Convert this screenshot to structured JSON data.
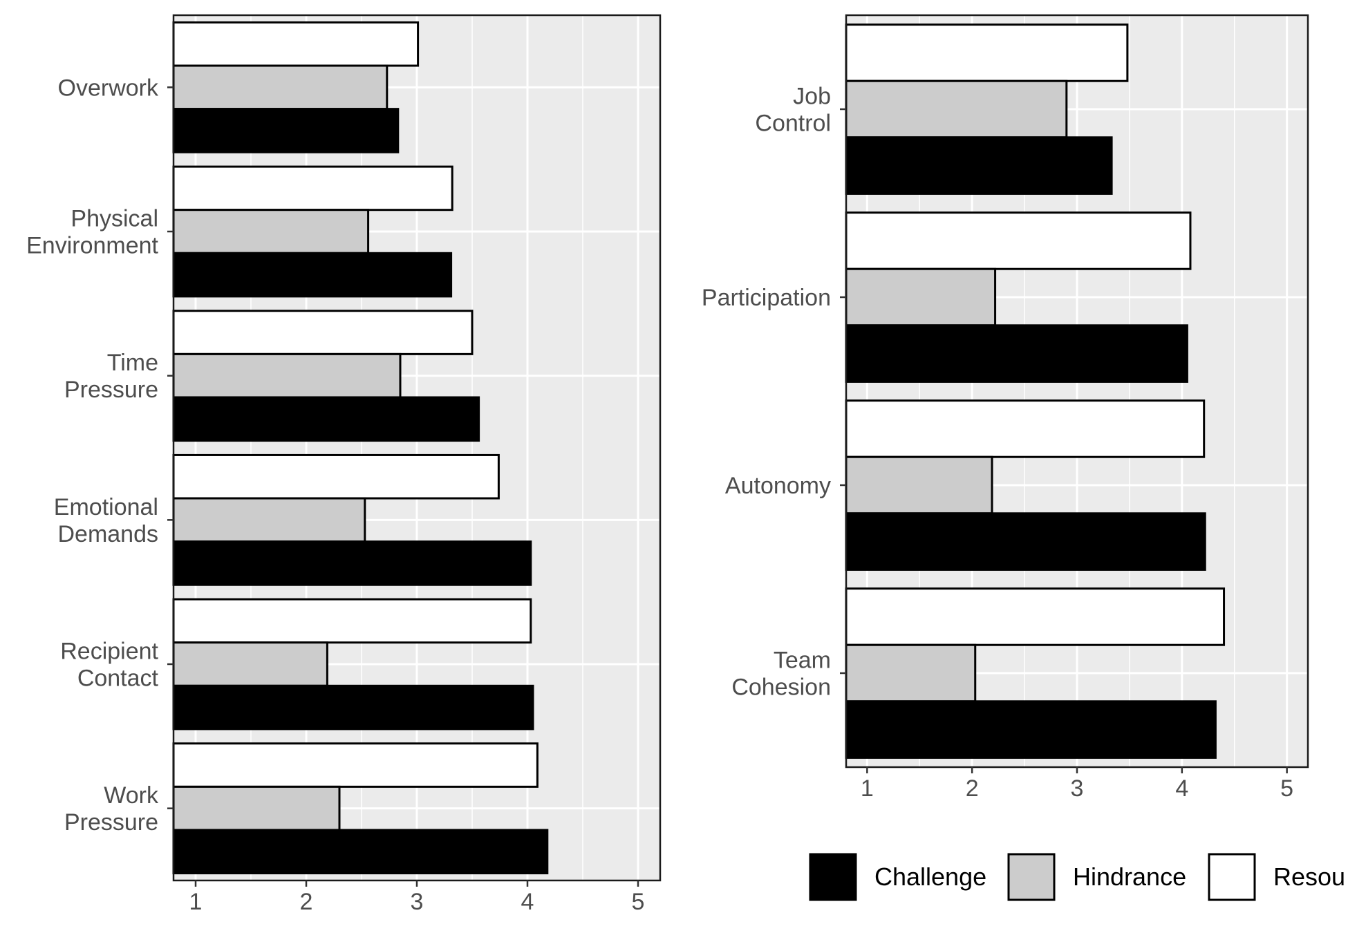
{
  "colors": {
    "panel_background": "#EBEBEB",
    "gridline": "#FFFFFF",
    "bar_outline": "#000000",
    "axis_text": "#4D4D4D",
    "series": {
      "Challenge": "#000000",
      "Hindrance": "#CCCCCC",
      "Resources": "#FFFFFF"
    }
  },
  "legend": {
    "placement": "bottom",
    "items": [
      {
        "label": "Challenge",
        "color": "#000000"
      },
      {
        "label": "Hindrance",
        "color": "#CCCCCC"
      },
      {
        "label": "Resou",
        "color": "#FFFFFF"
      }
    ]
  },
  "chart_data": [
    {
      "type": "bar",
      "orientation": "horizontal",
      "title": "",
      "xlabel": "",
      "ylabel": "",
      "xlim": [
        0.8,
        5.2
      ],
      "x_ticks": [
        1,
        2,
        3,
        4,
        5
      ],
      "grid": true,
      "categories": [
        [
          "Overwork"
        ],
        [
          "Physical",
          "Environment"
        ],
        [
          "Time",
          "Pressure"
        ],
        [
          "Emotional",
          "Demands"
        ],
        [
          "Recipient",
          "Contact"
        ],
        [
          "Work",
          "Pressure"
        ]
      ],
      "series": [
        {
          "name": "Challenge",
          "values": [
            2.83,
            3.31,
            3.56,
            4.03,
            4.05,
            4.18
          ]
        },
        {
          "name": "Hindrance",
          "values": [
            2.73,
            2.56,
            2.85,
            2.53,
            2.19,
            2.3
          ]
        },
        {
          "name": "Resources",
          "values": [
            3.01,
            3.32,
            3.5,
            3.74,
            4.03,
            4.09
          ]
        }
      ]
    },
    {
      "type": "bar",
      "orientation": "horizontal",
      "title": "",
      "xlabel": "",
      "ylabel": "",
      "xlim": [
        0.8,
        5.2
      ],
      "x_ticks": [
        1,
        2,
        3,
        4,
        5
      ],
      "grid": true,
      "categories": [
        [
          "Job",
          "Control"
        ],
        [
          "Participation"
        ],
        [
          "Autonomy"
        ],
        [
          "Team",
          "Cohesion"
        ]
      ],
      "series": [
        {
          "name": "Challenge",
          "values": [
            3.33,
            4.05,
            4.22,
            4.32
          ]
        },
        {
          "name": "Hindrance",
          "values": [
            2.9,
            2.22,
            2.19,
            2.03
          ]
        },
        {
          "name": "Resources",
          "values": [
            3.48,
            4.08,
            4.21,
            4.4
          ]
        }
      ]
    }
  ]
}
